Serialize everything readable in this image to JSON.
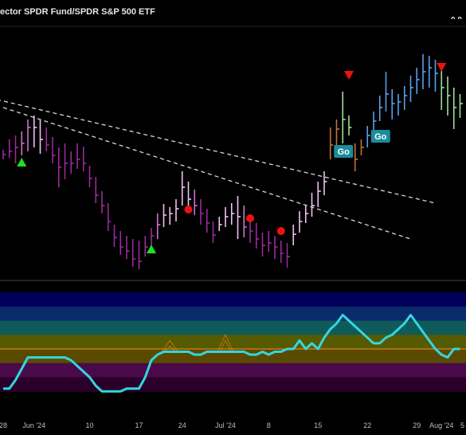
{
  "header": {
    "title": "ector SPDR Fund/SPDR S&P 500 ETF",
    "last_value": "0.0"
  },
  "colors": {
    "background": "#000000",
    "bar_purple": "#9b2a9b",
    "bar_magenta": "#d070d0",
    "bar_pink": "#f0c0f0",
    "bar_orange": "#c0723a",
    "bar_green": "#9be09b",
    "bar_blue": "#5aa0e8",
    "trendline": "#d8d8d8",
    "triangle_up": "#22dd22",
    "triangle_down": "#ee1111",
    "dot": "#ee1111",
    "oscillator": "#33d6e0",
    "zero_line": "#ff8c1a",
    "go_label_bg": "#1a8c9a",
    "osc_bands": [
      "#00005a",
      "#0a2c6a",
      "#0f5a5a",
      "#565a00",
      "#5a4a00",
      "#4a0a4a",
      "#2a002a"
    ]
  },
  "chart_data": {
    "type": "ohlc",
    "x_ticks": [
      {
        "label": "28",
        "index": 0
      },
      {
        "label": "Jun '24",
        "index": 5
      },
      {
        "label": "10",
        "index": 14
      },
      {
        "label": "17",
        "index": 22
      },
      {
        "label": "24",
        "index": 29
      },
      {
        "label": "Jul '24",
        "index": 36
      },
      {
        "label": "8",
        "index": 43
      },
      {
        "label": "15",
        "index": 51
      },
      {
        "label": "22",
        "index": 59
      },
      {
        "label": "29",
        "index": 67
      },
      {
        "label": "Aug '24",
        "index": 71
      },
      {
        "label": "5",
        "index": 75
      }
    ],
    "price_bars": [
      {
        "h": 188,
        "l": 200,
        "c": 194,
        "color": "purple"
      },
      {
        "h": 175,
        "l": 198,
        "c": 190,
        "color": "purple"
      },
      {
        "h": 170,
        "l": 205,
        "c": 185,
        "color": "purple"
      },
      {
        "h": 165,
        "l": 195,
        "c": 180,
        "color": "magenta"
      },
      {
        "h": 150,
        "l": 190,
        "c": 160,
        "color": "magenta"
      },
      {
        "h": 145,
        "l": 185,
        "c": 160,
        "color": "pink"
      },
      {
        "h": 150,
        "l": 193,
        "c": 175,
        "color": "pink"
      },
      {
        "h": 160,
        "l": 190,
        "c": 182,
        "color": "purple"
      },
      {
        "h": 172,
        "l": 205,
        "c": 195,
        "color": "purple"
      },
      {
        "h": 185,
        "l": 235,
        "c": 210,
        "color": "purple"
      },
      {
        "h": 180,
        "l": 225,
        "c": 205,
        "color": "purple"
      },
      {
        "h": 190,
        "l": 218,
        "c": 205,
        "color": "purple"
      },
      {
        "h": 180,
        "l": 212,
        "c": 200,
        "color": "purple"
      },
      {
        "h": 184,
        "l": 215,
        "c": 205,
        "color": "purple"
      },
      {
        "h": 208,
        "l": 235,
        "c": 224,
        "color": "purple"
      },
      {
        "h": 222,
        "l": 255,
        "c": 245,
        "color": "purple"
      },
      {
        "h": 240,
        "l": 268,
        "c": 258,
        "color": "purple"
      },
      {
        "h": 255,
        "l": 290,
        "c": 278,
        "color": "purple"
      },
      {
        "h": 282,
        "l": 310,
        "c": 298,
        "color": "purple"
      },
      {
        "h": 290,
        "l": 320,
        "c": 310,
        "color": "purple"
      },
      {
        "h": 296,
        "l": 325,
        "c": 315,
        "color": "purple"
      },
      {
        "h": 300,
        "l": 335,
        "c": 325,
        "color": "purple"
      },
      {
        "h": 302,
        "l": 338,
        "c": 328,
        "color": "purple"
      },
      {
        "h": 296,
        "l": 322,
        "c": 310,
        "color": "purple"
      },
      {
        "h": 286,
        "l": 310,
        "c": 296,
        "color": "purple"
      },
      {
        "h": 268,
        "l": 300,
        "c": 282,
        "color": "magenta"
      },
      {
        "h": 256,
        "l": 285,
        "c": 270,
        "color": "pink"
      },
      {
        "h": 260,
        "l": 282,
        "c": 268,
        "color": "pink"
      },
      {
        "h": 250,
        "l": 278,
        "c": 262,
        "color": "pink"
      },
      {
        "h": 215,
        "l": 258,
        "c": 235,
        "color": "pink"
      },
      {
        "h": 228,
        "l": 262,
        "c": 250,
        "color": "pink"
      },
      {
        "h": 238,
        "l": 270,
        "c": 258,
        "color": "magenta"
      },
      {
        "h": 250,
        "l": 282,
        "c": 268,
        "color": "purple"
      },
      {
        "h": 262,
        "l": 292,
        "c": 280,
        "color": "purple"
      },
      {
        "h": 278,
        "l": 305,
        "c": 295,
        "color": "purple"
      },
      {
        "h": 272,
        "l": 290,
        "c": 282,
        "color": "pink"
      },
      {
        "h": 260,
        "l": 285,
        "c": 272,
        "color": "pink"
      },
      {
        "h": 255,
        "l": 282,
        "c": 268,
        "color": "pink"
      },
      {
        "h": 246,
        "l": 300,
        "c": 272,
        "color": "pink"
      },
      {
        "h": 258,
        "l": 298,
        "c": 285,
        "color": "magenta"
      },
      {
        "h": 270,
        "l": 305,
        "c": 290,
        "color": "purple"
      },
      {
        "h": 280,
        "l": 312,
        "c": 300,
        "color": "purple"
      },
      {
        "h": 292,
        "l": 322,
        "c": 308,
        "color": "purple"
      },
      {
        "h": 290,
        "l": 316,
        "c": 305,
        "color": "purple"
      },
      {
        "h": 296,
        "l": 325,
        "c": 310,
        "color": "purple"
      },
      {
        "h": 302,
        "l": 330,
        "c": 318,
        "color": "purple"
      },
      {
        "h": 305,
        "l": 336,
        "c": 322,
        "color": "purple"
      },
      {
        "h": 282,
        "l": 308,
        "c": 294,
        "color": "pink"
      },
      {
        "h": 265,
        "l": 292,
        "c": 278,
        "color": "pink"
      },
      {
        "h": 258,
        "l": 280,
        "c": 268,
        "color": "pink"
      },
      {
        "h": 242,
        "l": 272,
        "c": 258,
        "color": "pink"
      },
      {
        "h": 228,
        "l": 260,
        "c": 240,
        "color": "pink"
      },
      {
        "h": 215,
        "l": 245,
        "c": 228,
        "color": "pink"
      },
      {
        "h": 160,
        "l": 200,
        "c": 182,
        "color": "orange"
      },
      {
        "h": 150,
        "l": 185,
        "c": 162,
        "color": "orange"
      },
      {
        "h": 115,
        "l": 180,
        "c": 150,
        "color": "green"
      },
      {
        "h": 145,
        "l": 170,
        "c": 160,
        "color": "green"
      },
      {
        "h": 180,
        "l": 215,
        "c": 200,
        "color": "orange"
      },
      {
        "h": 175,
        "l": 195,
        "c": 185,
        "color": "orange"
      },
      {
        "h": 158,
        "l": 185,
        "c": 170,
        "color": "blue"
      },
      {
        "h": 140,
        "l": 170,
        "c": 152,
        "color": "blue"
      },
      {
        "h": 120,
        "l": 152,
        "c": 135,
        "color": "blue"
      },
      {
        "h": 90,
        "l": 140,
        "c": 118,
        "color": "blue"
      },
      {
        "h": 112,
        "l": 150,
        "c": 130,
        "color": "blue"
      },
      {
        "h": 118,
        "l": 145,
        "c": 128,
        "color": "blue"
      },
      {
        "h": 108,
        "l": 138,
        "c": 120,
        "color": "blue"
      },
      {
        "h": 95,
        "l": 128,
        "c": 110,
        "color": "blue"
      },
      {
        "h": 85,
        "l": 118,
        "c": 100,
        "color": "blue"
      },
      {
        "h": 68,
        "l": 112,
        "c": 90,
        "color": "blue"
      },
      {
        "h": 70,
        "l": 110,
        "c": 85,
        "color": "blue"
      },
      {
        "h": 75,
        "l": 115,
        "c": 92,
        "color": "blue"
      },
      {
        "h": 82,
        "l": 138,
        "c": 110,
        "color": "green"
      },
      {
        "h": 96,
        "l": 145,
        "c": 120,
        "color": "green"
      },
      {
        "h": 110,
        "l": 162,
        "c": 135,
        "color": "green"
      },
      {
        "h": 118,
        "l": 148,
        "c": 130,
        "color": "green"
      }
    ],
    "trendlines": [
      {
        "from": {
          "i": -1,
          "p": 125
        },
        "to": {
          "i": 70,
          "p": 255
        }
      },
      {
        "from": {
          "i": 0,
          "p": 135
        },
        "to": {
          "i": 66,
          "p": 300
        }
      }
    ],
    "triangles_up": [
      {
        "i": 3,
        "p": 204
      },
      {
        "i": 24,
        "p": 313
      }
    ],
    "triangles_down": [
      {
        "i": 56,
        "p": 94
      },
      {
        "i": 71,
        "p": 84
      }
    ],
    "dots": [
      {
        "i": 30,
        "p": 263
      },
      {
        "i": 40,
        "p": 274
      },
      {
        "i": 45,
        "p": 290
      }
    ],
    "go_labels": [
      {
        "text": "Go",
        "i": 55,
        "p": 190
      },
      {
        "text": "Go",
        "i": 61,
        "p": 171
      }
    ],
    "oscillator": {
      "bands": [
        5,
        4,
        3,
        2,
        1,
        0,
        -1,
        -2
      ],
      "zero_level": 1,
      "values": [
        -1.8,
        -1.8,
        -1.2,
        -0.4,
        0.4,
        0.4,
        0.4,
        0.4,
        0.4,
        0.4,
        0.4,
        0.2,
        -0.2,
        -0.6,
        -1.0,
        -1.6,
        -2.0,
        -2.0,
        -2.0,
        -2.0,
        -1.8,
        -1.8,
        -1.8,
        -1.0,
        0.2,
        0.6,
        0.8,
        0.8,
        0.8,
        0.8,
        0.8,
        0.6,
        0.6,
        0.8,
        0.8,
        0.8,
        0.8,
        0.8,
        0.8,
        0.8,
        0.6,
        0.6,
        0.8,
        0.6,
        0.8,
        0.8,
        1.0,
        1.0,
        1.6,
        1.0,
        1.4,
        1.0,
        1.8,
        2.4,
        2.8,
        3.4,
        3.0,
        2.6,
        2.2,
        1.8,
        1.4,
        1.4,
        1.8,
        2.0,
        2.4,
        2.8,
        3.4,
        2.8,
        2.2,
        1.6,
        1.0,
        0.6,
        0.4,
        1.0,
        1.0
      ]
    },
    "osc_spikes": [
      {
        "i": 27,
        "base": 0.8,
        "peaks": [
          1.6,
          1.2
        ]
      },
      {
        "i": 36,
        "base": 0.8,
        "peaks": [
          2.0,
          1.6
        ]
      }
    ]
  }
}
